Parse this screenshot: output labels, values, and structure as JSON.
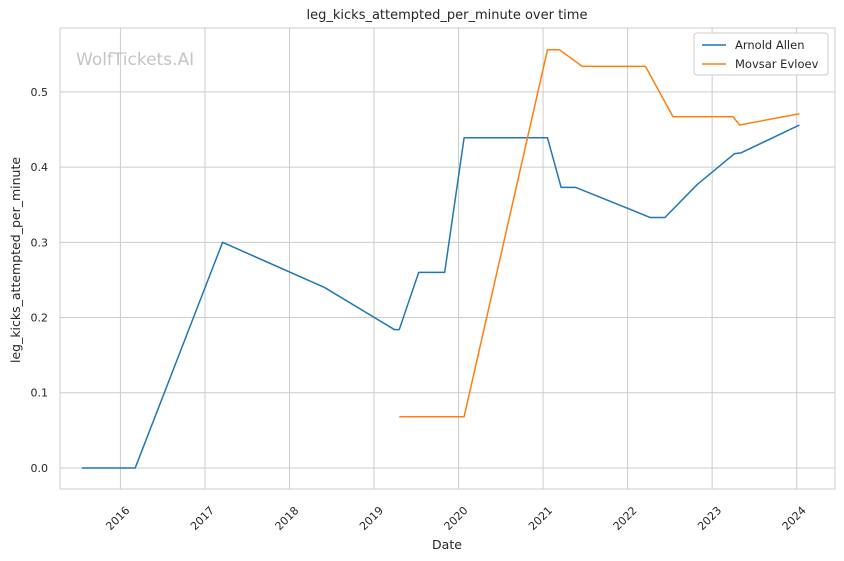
{
  "chart_data": {
    "type": "line",
    "title": "leg_kicks_attempted_per_minute over time",
    "xlabel": "Date",
    "ylabel": "leg_kicks_attempted_per_minute",
    "watermark": "WolfTickets.AI",
    "x_ticks": [
      "2016",
      "2017",
      "2018",
      "2019",
      "2020",
      "2021",
      "2022",
      "2023",
      "2024"
    ],
    "y_ticks": [
      "0.0",
      "0.1",
      "0.2",
      "0.3",
      "0.4",
      "0.5"
    ],
    "xlim": [
      "2015-04-15",
      "2024-06-15"
    ],
    "ylim": [
      -0.028,
      0.585
    ],
    "grid": true,
    "legend_position": "top-right",
    "series": [
      {
        "name": "Arnold Allen",
        "color": "#1f77b4",
        "points": [
          [
            "2015-07-18",
            0.0
          ],
          [
            "2016-03-05",
            0.0
          ],
          [
            "2017-03-18",
            0.3
          ],
          [
            "2018-06-01",
            0.24
          ],
          [
            "2019-03-30",
            0.184
          ],
          [
            "2019-04-20",
            0.184
          ],
          [
            "2019-07-13",
            0.26
          ],
          [
            "2019-11-02",
            0.26
          ],
          [
            "2020-01-25",
            0.439
          ],
          [
            "2021-01-20",
            0.439
          ],
          [
            "2021-03-20",
            0.373
          ],
          [
            "2021-05-22",
            0.373
          ],
          [
            "2022-04-09",
            0.333
          ],
          [
            "2022-06-11",
            0.333
          ],
          [
            "2022-10-29",
            0.377
          ],
          [
            "2023-04-08",
            0.418
          ],
          [
            "2023-05-06",
            0.419
          ],
          [
            "2024-01-13",
            0.456
          ]
        ]
      },
      {
        "name": "Movsar Evloev",
        "color": "#ff7f0e",
        "points": [
          [
            "2019-04-20",
            0.068
          ],
          [
            "2020-01-25",
            0.068
          ],
          [
            "2021-01-20",
            0.556
          ],
          [
            "2021-03-13",
            0.556
          ],
          [
            "2021-06-19",
            0.534
          ],
          [
            "2022-03-19",
            0.534
          ],
          [
            "2022-07-16",
            0.467
          ],
          [
            "2023-04-01",
            0.467
          ],
          [
            "2023-04-30",
            0.456
          ],
          [
            "2024-01-13",
            0.471
          ]
        ]
      }
    ]
  }
}
